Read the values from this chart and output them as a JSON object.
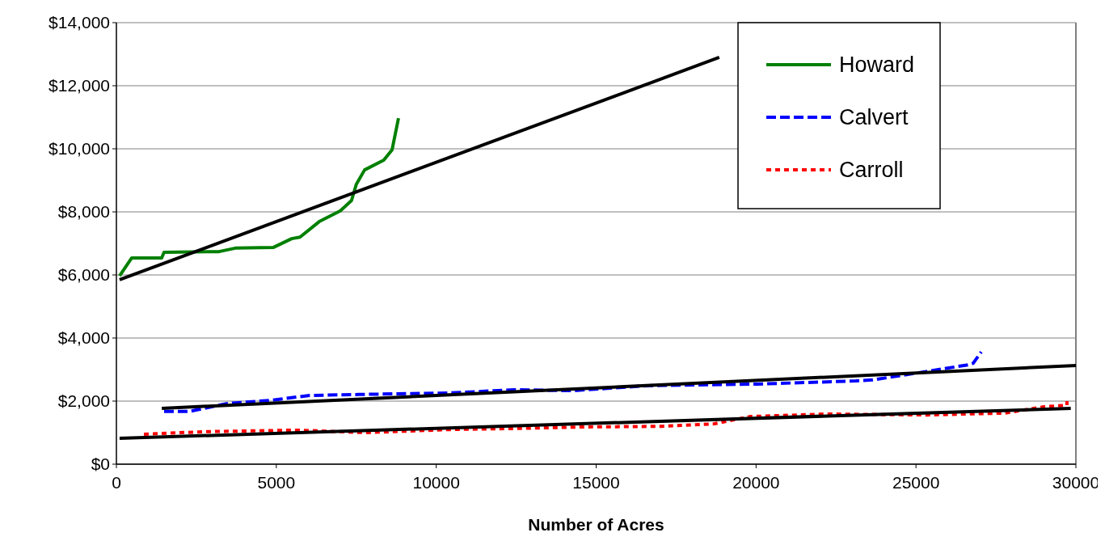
{
  "chart_data": {
    "type": "line",
    "xlabel": "Number of Acres",
    "xlim": [
      0,
      30000
    ],
    "xticks": [
      0,
      5000,
      10000,
      15000,
      20000,
      25000,
      30000
    ],
    "ylim": [
      0,
      14000
    ],
    "yticks": [
      {
        "value": 0,
        "label": "$0"
      },
      {
        "value": 2000,
        "label": "$2,000"
      },
      {
        "value": 4000,
        "label": "$4,000"
      },
      {
        "value": 6000,
        "label": "$6,000"
      },
      {
        "value": 8000,
        "label": "$8,000"
      },
      {
        "value": 10000,
        "label": "$10,000"
      },
      {
        "value": 12000,
        "label": "$12,000"
      },
      {
        "value": 14000,
        "label": "$14,000"
      }
    ],
    "grid": "y",
    "legend": "top right",
    "marker": "none",
    "series": [
      {
        "name": "Howard",
        "color": "#008000",
        "line_style": "solid",
        "x": [
          100,
          480,
          1415,
          1490,
          3210,
          3715,
          4900,
          5480,
          5740,
          6340,
          7000,
          7350,
          7500,
          7760,
          8360,
          8620,
          8820
        ],
        "values": [
          5970,
          6540,
          6540,
          6720,
          6740,
          6850,
          6870,
          7150,
          7200,
          7690,
          8030,
          8360,
          8870,
          9330,
          9640,
          9970,
          10970
        ]
      },
      {
        "name": "Calvert",
        "color": "#0000ff",
        "line_style": "dashed",
        "x": [
          1490,
          2270,
          3440,
          4880,
          6040,
          7580,
          10490,
          12430,
          14250,
          16630,
          20040,
          23120,
          23630,
          25090,
          26630,
          26790,
          27040
        ],
        "values": [
          1670,
          1670,
          1920,
          2030,
          2180,
          2210,
          2260,
          2360,
          2330,
          2490,
          2540,
          2640,
          2670,
          2900,
          3150,
          3200,
          3560
        ]
      },
      {
        "name": "Carroll",
        "color": "#ff0000",
        "line_style": "dotted",
        "x": [
          860,
          2750,
          5660,
          7780,
          10490,
          12430,
          14560,
          17030,
          18700,
          19810,
          22190,
          25300,
          27770,
          29010,
          29720,
          29720
        ],
        "values": [
          950,
          1030,
          1080,
          1000,
          1100,
          1130,
          1180,
          1200,
          1280,
          1510,
          1590,
          1560,
          1620,
          1820,
          1870,
          2000
        ]
      },
      {
        "color": "#000000",
        "line_style": "solid",
        "x": [
          100,
          18850
        ],
        "values": [
          5850,
          12900
        ]
      },
      {
        "color": "#000000",
        "line_style": "solid",
        "x": [
          1420,
          30000
        ],
        "values": [
          1770,
          3130
        ]
      },
      {
        "color": "#000000",
        "line_style": "solid",
        "x": [
          100,
          29840
        ],
        "values": [
          820,
          1770
        ]
      }
    ]
  }
}
